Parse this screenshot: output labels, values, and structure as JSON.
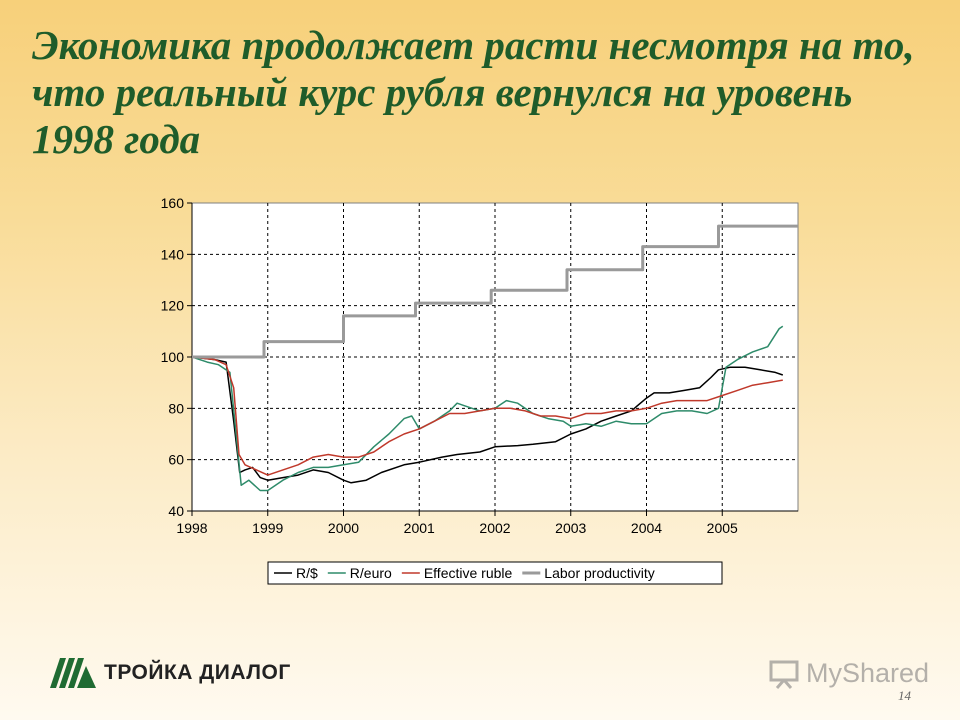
{
  "title": "Экономика продолжает расти несмотря на то, что реальный курс рубля вернулся на уровень 1998 года",
  "logo": {
    "text": "ТРОЙКА ДИАЛОГ",
    "icon": "troika-logo-icon",
    "color": "#1f6b32"
  },
  "watermark": {
    "text": "MyShared",
    "icon": "presentation-icon"
  },
  "page_number": "14",
  "chart_data": {
    "type": "line",
    "xlim": [
      1998,
      2006
    ],
    "ylim": [
      40,
      160
    ],
    "x_ticks": [
      "1998",
      "1999",
      "2000",
      "2001",
      "2002",
      "2003",
      "2004",
      "2005"
    ],
    "y_ticks": [
      "40",
      "60",
      "80",
      "100",
      "120",
      "140",
      "160"
    ],
    "grid": true,
    "legend_position": "bottom",
    "series": [
      {
        "name": "R/$",
        "color": "#000000",
        "points": [
          [
            1998.0,
            100
          ],
          [
            1998.3,
            99
          ],
          [
            1998.45,
            98
          ],
          [
            1998.55,
            75
          ],
          [
            1998.63,
            55
          ],
          [
            1998.7,
            56
          ],
          [
            1998.8,
            57
          ],
          [
            1998.9,
            53
          ],
          [
            1999.0,
            52
          ],
          [
            1999.2,
            53
          ],
          [
            1999.4,
            54
          ],
          [
            1999.6,
            56
          ],
          [
            1999.8,
            55
          ],
          [
            2000.0,
            52
          ],
          [
            2000.1,
            51
          ],
          [
            2000.3,
            52
          ],
          [
            2000.5,
            55
          ],
          [
            2000.8,
            58
          ],
          [
            2001.0,
            59
          ],
          [
            2001.3,
            61
          ],
          [
            2001.5,
            62
          ],
          [
            2001.8,
            63
          ],
          [
            2002.0,
            65
          ],
          [
            2002.3,
            65.5
          ],
          [
            2002.5,
            66
          ],
          [
            2002.8,
            67
          ],
          [
            2003.0,
            70
          ],
          [
            2003.2,
            72
          ],
          [
            2003.4,
            75
          ],
          [
            2003.6,
            77
          ],
          [
            2003.8,
            79
          ],
          [
            2004.0,
            84
          ],
          [
            2004.1,
            86
          ],
          [
            2004.3,
            86
          ],
          [
            2004.5,
            87
          ],
          [
            2004.7,
            88
          ],
          [
            2004.85,
            92
          ],
          [
            2004.95,
            95
          ],
          [
            2005.1,
            96
          ],
          [
            2005.3,
            96
          ],
          [
            2005.5,
            95
          ],
          [
            2005.7,
            94
          ],
          [
            2005.8,
            93
          ]
        ]
      },
      {
        "name": "R/euro",
        "color": "#2e8b6a",
        "points": [
          [
            1998.0,
            100
          ],
          [
            1998.2,
            98
          ],
          [
            1998.35,
            97
          ],
          [
            1998.5,
            94
          ],
          [
            1998.6,
            65
          ],
          [
            1998.65,
            50
          ],
          [
            1998.75,
            52
          ],
          [
            1998.9,
            48
          ],
          [
            1999.0,
            48
          ],
          [
            1999.2,
            52
          ],
          [
            1999.4,
            55
          ],
          [
            1999.6,
            57
          ],
          [
            1999.8,
            57
          ],
          [
            2000.0,
            58
          ],
          [
            2000.2,
            59
          ],
          [
            2000.4,
            65
          ],
          [
            2000.6,
            70
          ],
          [
            2000.8,
            76
          ],
          [
            2000.9,
            77
          ],
          [
            2001.0,
            72
          ],
          [
            2001.2,
            75
          ],
          [
            2001.4,
            79
          ],
          [
            2001.5,
            82
          ],
          [
            2001.6,
            81
          ],
          [
            2001.8,
            79
          ],
          [
            2002.0,
            80
          ],
          [
            2002.15,
            83
          ],
          [
            2002.3,
            82
          ],
          [
            2002.5,
            78
          ],
          [
            2002.7,
            76
          ],
          [
            2002.9,
            75
          ],
          [
            2003.0,
            73
          ],
          [
            2003.2,
            74
          ],
          [
            2003.4,
            73
          ],
          [
            2003.6,
            75
          ],
          [
            2003.8,
            74
          ],
          [
            2004.0,
            74
          ],
          [
            2004.2,
            78
          ],
          [
            2004.4,
            79
          ],
          [
            2004.6,
            79
          ],
          [
            2004.8,
            78
          ],
          [
            2004.95,
            80
          ],
          [
            2005.05,
            96
          ],
          [
            2005.2,
            99
          ],
          [
            2005.4,
            102
          ],
          [
            2005.6,
            104
          ],
          [
            2005.75,
            111
          ],
          [
            2005.8,
            112
          ]
        ]
      },
      {
        "name": "Effective ruble",
        "color": "#c0392b",
        "points": [
          [
            1998.0,
            100
          ],
          [
            1998.3,
            99
          ],
          [
            1998.45,
            97
          ],
          [
            1998.55,
            88
          ],
          [
            1998.62,
            62
          ],
          [
            1998.7,
            58
          ],
          [
            1998.85,
            56
          ],
          [
            1999.0,
            54
          ],
          [
            1999.2,
            56
          ],
          [
            1999.4,
            58
          ],
          [
            1999.6,
            61
          ],
          [
            1999.8,
            62
          ],
          [
            2000.0,
            61
          ],
          [
            2000.2,
            61
          ],
          [
            2000.4,
            63
          ],
          [
            2000.6,
            67
          ],
          [
            2000.8,
            70
          ],
          [
            2001.0,
            72
          ],
          [
            2001.2,
            75
          ],
          [
            2001.4,
            78
          ],
          [
            2001.6,
            78
          ],
          [
            2001.8,
            79
          ],
          [
            2002.0,
            80
          ],
          [
            2002.2,
            80
          ],
          [
            2002.4,
            79
          ],
          [
            2002.6,
            77
          ],
          [
            2002.8,
            77
          ],
          [
            2003.0,
            76
          ],
          [
            2003.2,
            78
          ],
          [
            2003.4,
            78
          ],
          [
            2003.6,
            79
          ],
          [
            2003.8,
            79
          ],
          [
            2004.0,
            80
          ],
          [
            2004.2,
            82
          ],
          [
            2004.4,
            83
          ],
          [
            2004.6,
            83
          ],
          [
            2004.8,
            83
          ],
          [
            2005.0,
            85
          ],
          [
            2005.2,
            87
          ],
          [
            2005.4,
            89
          ],
          [
            2005.6,
            90
          ],
          [
            2005.8,
            91
          ]
        ]
      },
      {
        "name": "Labor productivity",
        "color": "#9a9a9a",
        "points": [
          [
            1998.0,
            100
          ],
          [
            1998.95,
            100
          ],
          [
            1998.95,
            106
          ],
          [
            2000.0,
            106
          ],
          [
            2000.0,
            116
          ],
          [
            2000.95,
            116
          ],
          [
            2000.95,
            121
          ],
          [
            2001.95,
            121
          ],
          [
            2001.95,
            126
          ],
          [
            2002.95,
            126
          ],
          [
            2002.95,
            134
          ],
          [
            2003.95,
            134
          ],
          [
            2003.95,
            143
          ],
          [
            2004.95,
            143
          ],
          [
            2004.95,
            151
          ],
          [
            2006.0,
            151
          ]
        ]
      }
    ]
  }
}
